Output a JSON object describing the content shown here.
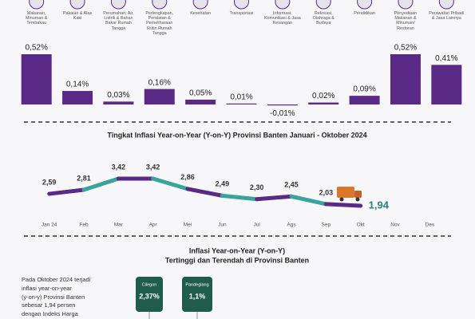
{
  "chart_data": [
    {
      "type": "bar",
      "color": "#5b2a86",
      "categories": [
        "Makanan, Minuman & Tembakau",
        "Pakaian & Alas Kaki",
        "Perumahan, Air, Listrik & Bahan Bakar Rumah Tangga",
        "Perlengkapan, Peralatan & Pemeliharaan Rutin Rumah Tangga",
        "Kesehatan",
        "Transportasi",
        "Informasi, Komunikasi & Jasa Keuangan",
        "Rekreasi, Olahraga & Budaya",
        "Pendidikan",
        "Penyediaan Makanan & Minuman/ Restoran",
        "Perawatan Pribadi & Jasa Lainnya"
      ],
      "values": [
        0.52,
        0.14,
        0.03,
        0.16,
        0.05,
        0.01,
        -0.01,
        0.02,
        0.09,
        0.52,
        0.41
      ],
      "value_labels": [
        "0,52%",
        "0,14%",
        "0,03%",
        "0,16%",
        "0,05%",
        "0,01%",
        "-0,01%",
        "0,02%",
        "0,09%",
        "0,52%",
        "0,41%"
      ]
    },
    {
      "type": "line",
      "title": "Tingkat Inflasi Year-on-Year (Y-on-Y) Provinsi Banten Januari - Oktober 2024",
      "categories": [
        "Jan 24",
        "Feb",
        "Mar",
        "Apr",
        "Mei",
        "Jun",
        "Jul",
        "Ags",
        "Sep",
        "Okt",
        "Nov",
        "Des"
      ],
      "series": [
        {
          "colors": [
            "#5b2a86",
            "#3aa39a"
          ],
          "values": [
            2.59,
            2.81,
            3.42,
            3.42,
            2.86,
            2.49,
            2.3,
            2.45,
            2.03,
            1.94,
            null,
            null
          ],
          "value_labels": [
            "2,59",
            "2,81",
            "3,42",
            "3,42",
            "2,86",
            "2,49",
            "2,30",
            "2,45",
            "2,03",
            "1,94",
            null,
            null
          ]
        }
      ]
    }
  ],
  "section": {
    "title": [
      "Inflasi Year-on-Year (Y-on-Y)",
      "Tertinggi dan Terendah di Provinsi Banten"
    ],
    "text": [
      "Pada Oktober 2024 terjadi",
      "inflasi year-on-year",
      "(y-on-y) Provinsi Banten",
      "sebesar 1,94 persen",
      "dengan Indeks Harga"
    ],
    "regions": [
      {
        "name": "Cilegon",
        "value": "2,37%"
      },
      {
        "name": "Pandeglang",
        "value": "1,1%"
      }
    ]
  }
}
